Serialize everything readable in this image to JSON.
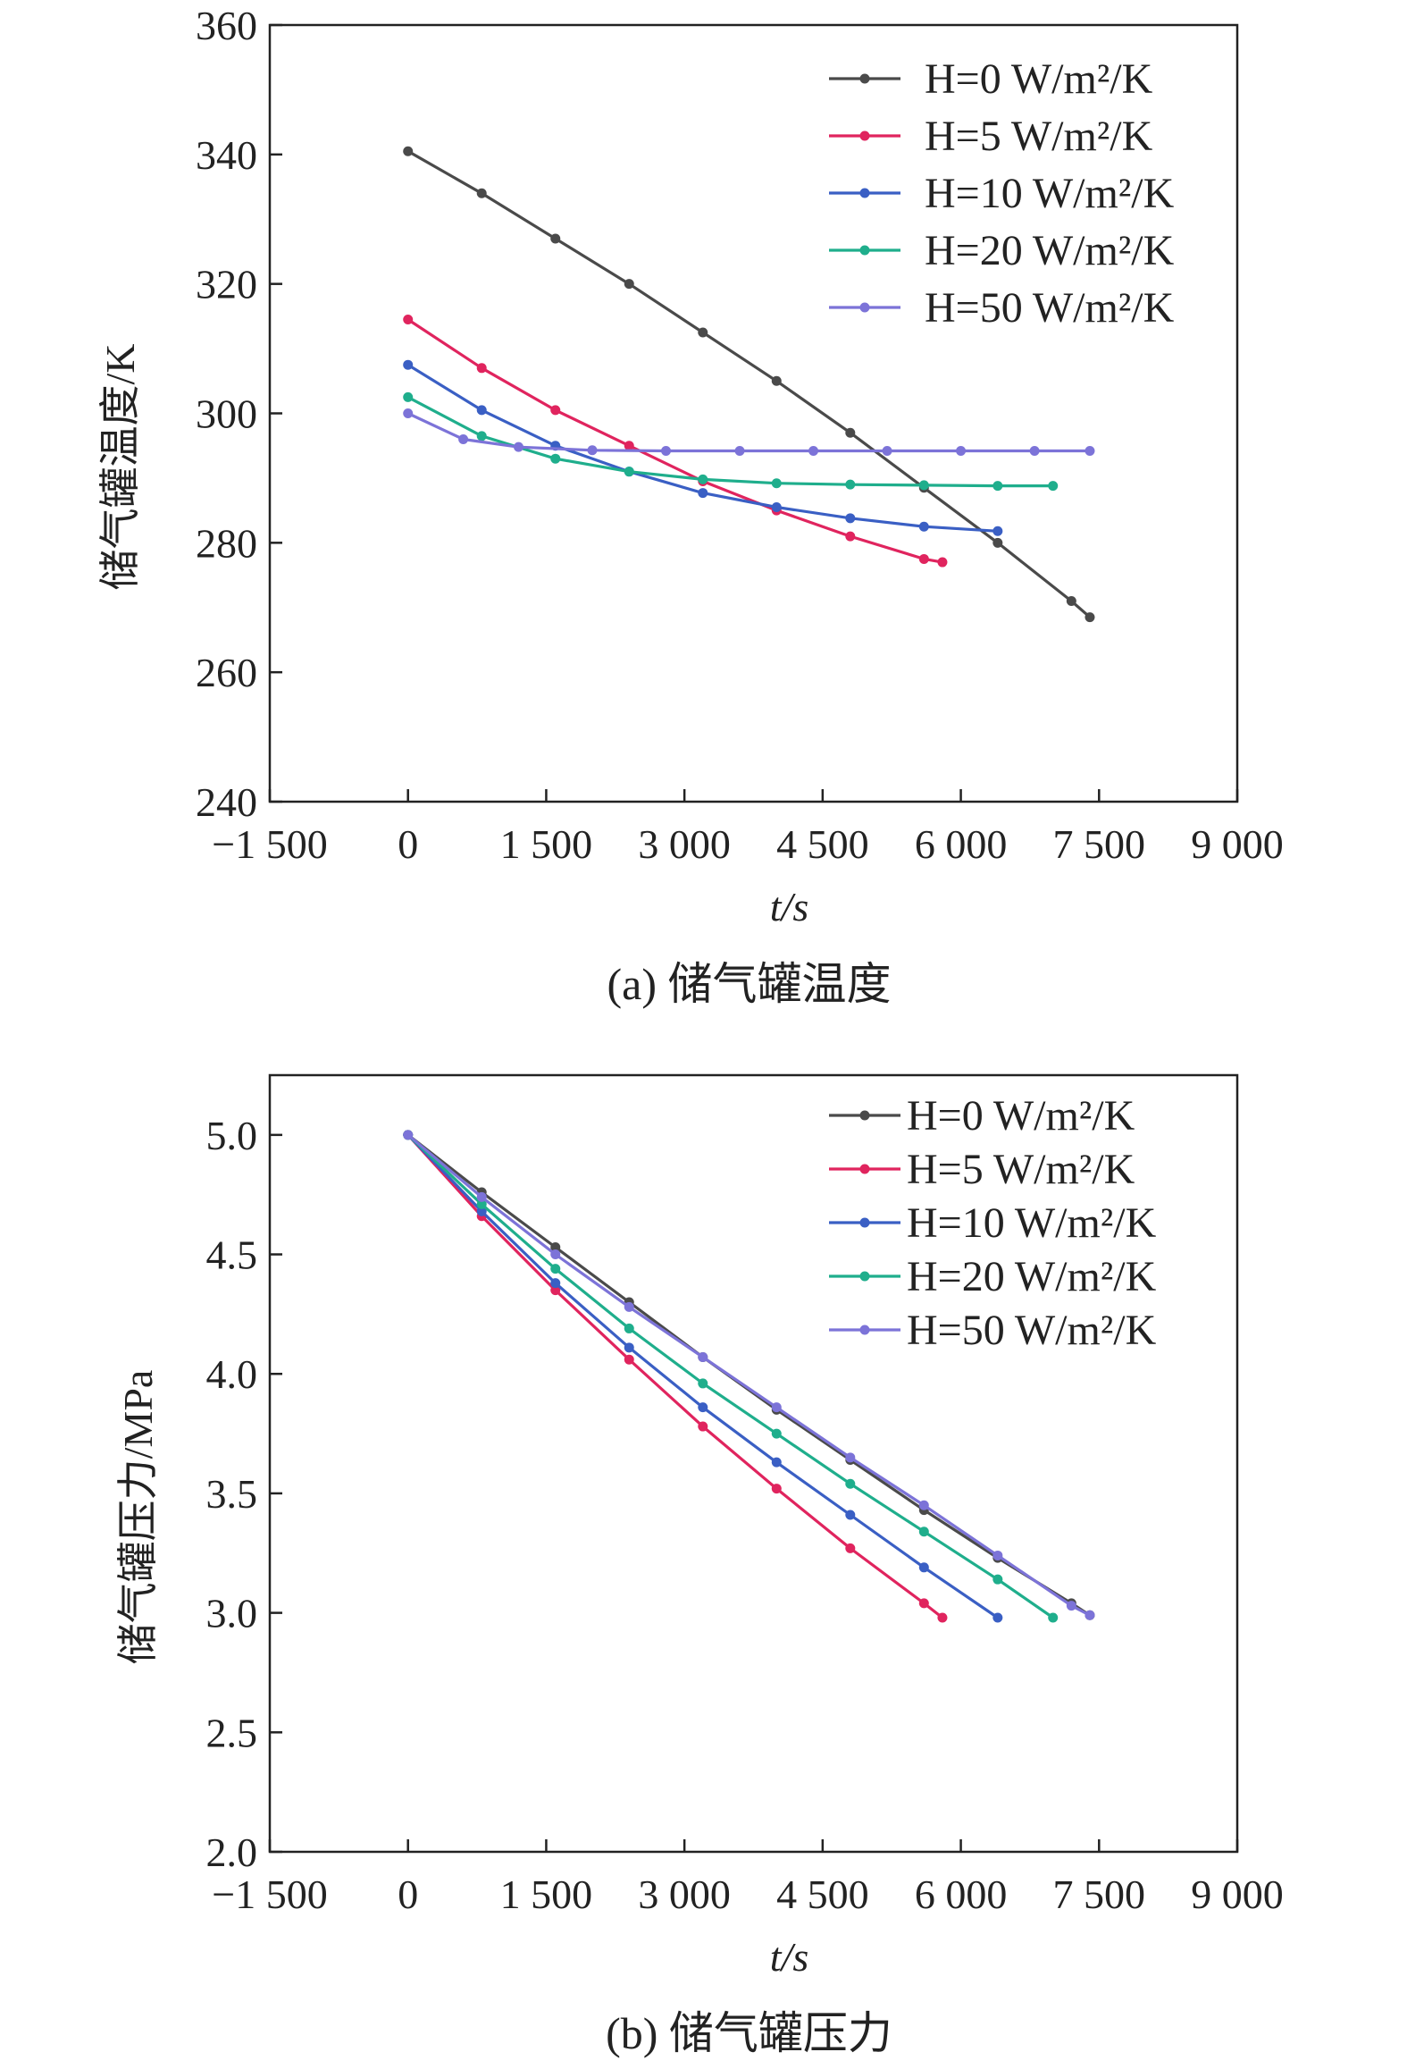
{
  "chart_data": [
    {
      "type": "line",
      "caption": "(a) 储气罐温度",
      "xlabel": "t/s",
      "ylabel": "储气罐温度/K",
      "xlim": [
        -1500,
        9000
      ],
      "ylim": [
        240,
        360
      ],
      "x_ticks": [
        -1500,
        0,
        1500,
        3000,
        4500,
        6000,
        7500,
        9000
      ],
      "x_tick_labels": [
        "−1 500",
        "0",
        "1 500",
        "3 000",
        "4 500",
        "6 000",
        "7 500",
        "9 000"
      ],
      "y_ticks": [
        240,
        260,
        280,
        300,
        320,
        340,
        360
      ],
      "y_tick_labels": [
        "240",
        "260",
        "280",
        "300",
        "320",
        "340",
        "360"
      ],
      "legend_position": "top-right",
      "series": [
        {
          "name": "H=0 W/m²/K",
          "color": "#4a4a4a",
          "x": [
            0,
            800,
            1600,
            2400,
            3200,
            4000,
            4800,
            5600,
            6400,
            7200,
            7400
          ],
          "y": [
            340.5,
            334,
            327,
            320,
            312.5,
            305,
            297,
            288.5,
            280,
            271,
            268.5
          ]
        },
        {
          "name": "H=5 W/m²/K",
          "color": "#e0245e",
          "x": [
            0,
            800,
            1600,
            2400,
            3200,
            4000,
            4800,
            5600,
            5800
          ],
          "y": [
            314.5,
            307,
            300.5,
            295,
            289.5,
            285,
            281,
            277.5,
            277
          ]
        },
        {
          "name": "H=10 W/m²/K",
          "color": "#3a5fc4",
          "x": [
            0,
            800,
            1600,
            2400,
            3200,
            4000,
            4800,
            5600,
            6400
          ],
          "y": [
            307.5,
            300.5,
            295,
            291,
            287.7,
            285.5,
            283.8,
            282.5,
            281.8
          ]
        },
        {
          "name": "H=20 W/m²/K",
          "color": "#1fae8c",
          "x": [
            0,
            800,
            1600,
            2400,
            3200,
            4000,
            4800,
            5600,
            6400,
            7000
          ],
          "y": [
            302.5,
            296.5,
            293,
            291,
            289.8,
            289.2,
            289,
            288.9,
            288.8,
            288.8
          ]
        },
        {
          "name": "H=50 W/m²/K",
          "color": "#7c73d8",
          "x": [
            0,
            600,
            1200,
            2000,
            2800,
            3600,
            4400,
            5200,
            6000,
            6800,
            7400
          ],
          "y": [
            300,
            296,
            294.8,
            294.3,
            294.2,
            294.2,
            294.2,
            294.2,
            294.2,
            294.2,
            294.2
          ]
        }
      ]
    },
    {
      "type": "line",
      "caption": "(b) 储气罐压力",
      "xlabel": "t/s",
      "ylabel": "储气罐压力/MPa",
      "xlim": [
        -1500,
        9000
      ],
      "ylim": [
        2.0,
        5.25
      ],
      "x_ticks": [
        -1500,
        0,
        1500,
        3000,
        4500,
        6000,
        7500,
        9000
      ],
      "x_tick_labels": [
        "−1 500",
        "0",
        "1 500",
        "3 000",
        "4 500",
        "6 000",
        "7 500",
        "9 000"
      ],
      "y_ticks": [
        2.0,
        2.5,
        3.0,
        3.5,
        4.0,
        4.5,
        5.0
      ],
      "y_tick_labels": [
        "2.0",
        "2.5",
        "3.0",
        "3.5",
        "4.0",
        "4.5",
        "5.0"
      ],
      "legend_position": "top-right",
      "series": [
        {
          "name": "H=0 W/m²/K",
          "color": "#4a4a4a",
          "x": [
            0,
            800,
            1600,
            2400,
            3200,
            4000,
            4800,
            5600,
            6400,
            7200,
            7400
          ],
          "y": [
            5.0,
            4.76,
            4.53,
            4.3,
            4.07,
            3.85,
            3.64,
            3.43,
            3.23,
            3.04,
            2.99
          ]
        },
        {
          "name": "H=5 W/m²/K",
          "color": "#e0245e",
          "x": [
            0,
            800,
            1600,
            2400,
            3200,
            4000,
            4800,
            5600,
            5800
          ],
          "y": [
            5.0,
            4.66,
            4.35,
            4.06,
            3.78,
            3.52,
            3.27,
            3.04,
            2.98
          ]
        },
        {
          "name": "H=10 W/m²/K",
          "color": "#3a5fc4",
          "x": [
            0,
            800,
            1600,
            2400,
            3200,
            4000,
            4800,
            5600,
            6400
          ],
          "y": [
            5.0,
            4.68,
            4.38,
            4.11,
            3.86,
            3.63,
            3.41,
            3.19,
            2.98
          ]
        },
        {
          "name": "H=20 W/m²/K",
          "color": "#1fae8c",
          "x": [
            0,
            800,
            1600,
            2400,
            3200,
            4000,
            4800,
            5600,
            6400,
            7000
          ],
          "y": [
            5.0,
            4.71,
            4.44,
            4.19,
            3.96,
            3.75,
            3.54,
            3.34,
            3.14,
            2.98
          ]
        },
        {
          "name": "H=50 W/m²/K",
          "color": "#7c73d8",
          "x": [
            0,
            800,
            1600,
            2400,
            3200,
            4000,
            4800,
            5600,
            6400,
            7200,
            7400
          ],
          "y": [
            5.0,
            4.74,
            4.5,
            4.28,
            4.07,
            3.86,
            3.65,
            3.45,
            3.24,
            3.03,
            2.99
          ]
        }
      ]
    }
  ]
}
